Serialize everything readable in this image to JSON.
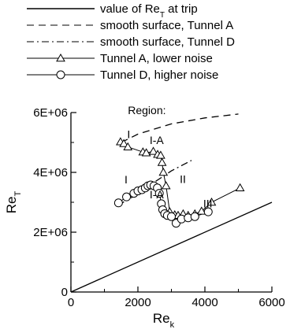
{
  "chart_data": {
    "type": "line",
    "xlabel": "Re",
    "xlabel_sub": "k",
    "ylabel": "Re",
    "ylabel_sub": "T",
    "xlim": [
      0,
      6000
    ],
    "ylim": [
      0,
      6000000
    ],
    "xticks": [
      0,
      2000,
      4000,
      6000
    ],
    "xtick_labels": [
      "0",
      "2000",
      "4000",
      "6000"
    ],
    "yticks": [
      0,
      2000000,
      4000000,
      6000000
    ],
    "ytick_labels": [
      "0",
      "2E+06",
      "4E+06",
      "6E+06"
    ],
    "grid": false,
    "legend_position": "top",
    "legend": [
      {
        "key": "trip",
        "text": "value of Re",
        "sub": "T",
        "after": " at trip",
        "line": "solid",
        "marker": "none"
      },
      {
        "key": "smoothA",
        "text": "smooth surface, Tunnel A",
        "line": "dashed",
        "marker": "none"
      },
      {
        "key": "smoothD",
        "text": "smooth surface, Tunnel D",
        "line": "dashdot",
        "marker": "none"
      },
      {
        "key": "tunnelA",
        "text": "Tunnel A, lower noise",
        "line": "solid-thin",
        "marker": "triangle"
      },
      {
        "key": "tunnelD",
        "text": "Tunnel D, higher noise",
        "line": "solid-thin",
        "marker": "circle"
      }
    ],
    "series": [
      {
        "key": "trip",
        "style": "solid",
        "x": [
          0,
          6000
        ],
        "y": [
          0,
          3000000
        ]
      },
      {
        "key": "smoothA",
        "style": "dashed",
        "x": [
          1500,
          2000,
          3000,
          4000,
          5000
        ],
        "y": [
          5000000,
          5280000,
          5620000,
          5820000,
          5950000
        ]
      },
      {
        "key": "smoothD",
        "style": "dashdot",
        "x": [
          1400,
          2000,
          2500,
          3000,
          3600
        ],
        "y": [
          2900000,
          3280000,
          3680000,
          4050000,
          4400000
        ]
      },
      {
        "key": "tunnelA",
        "style": "thin",
        "marker": "triangle",
        "x": [
          1480,
          1580,
          1700,
          2150,
          2250,
          2460,
          2590,
          2680,
          2720,
          2760,
          2840,
          2950,
          3100,
          3200,
          3350,
          3500,
          3700,
          3900,
          4200,
          5050
        ],
        "y": [
          5020000,
          4960000,
          4850000,
          4680000,
          4650000,
          4700000,
          4600000,
          4570000,
          4330000,
          4000000,
          3550000,
          2680000,
          2580000,
          2560000,
          2610000,
          2560000,
          2610000,
          2700000,
          3000000,
          3480000
        ]
      },
      {
        "key": "tunnelD",
        "style": "thin",
        "marker": "circle",
        "x": [
          1420,
          1660,
          1880,
          2000,
          2120,
          2220,
          2300,
          2380,
          2480,
          2580,
          2640,
          2700,
          2740,
          2800,
          2880,
          3000,
          3140,
          3300,
          3500,
          3700,
          4100
        ],
        "y": [
          2980000,
          3180000,
          3300000,
          3380000,
          3420000,
          3480000,
          3550000,
          3580000,
          3550000,
          3480000,
          3300000,
          2950000,
          2750000,
          2620000,
          2560000,
          2520000,
          2300000,
          2440000,
          2480000,
          2520000,
          2680000
        ]
      }
    ],
    "annotations": [
      {
        "text": "Region:",
        "x": 1700,
        "y": 5950000
      },
      {
        "text": "I",
        "x": 1680,
        "y": 5150000
      },
      {
        "text": "I-A",
        "x": 2350,
        "y": 4950000
      },
      {
        "text": "I",
        "x": 1600,
        "y": 3630000
      },
      {
        "text": "I-A",
        "x": 2350,
        "y": 3130000
      },
      {
        "text": "II",
        "x": 3250,
        "y": 3650000
      },
      {
        "text": "III",
        "x": 3950,
        "y": 2830000
      }
    ]
  }
}
